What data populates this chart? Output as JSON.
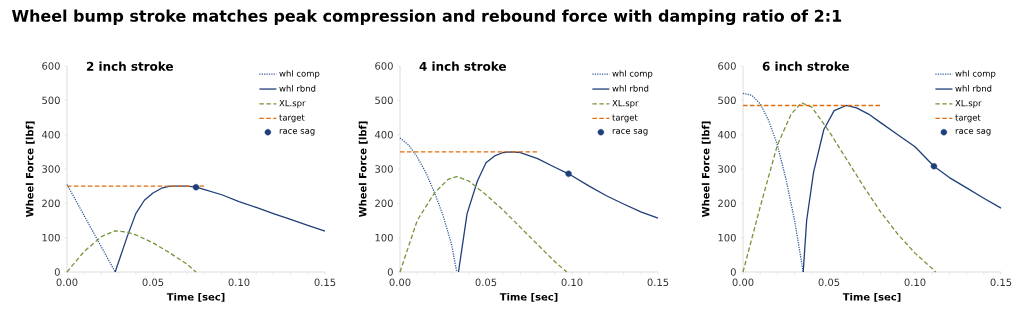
{
  "chart_data": [
    {
      "type": "line",
      "title": "Wheel bump stroke matches peak compression and rebound force with damping ratio of 2:1",
      "subtitle": "2 inch stroke",
      "xlabel": "Time [sec]",
      "ylabel": "Wheel Force [lbf]",
      "legend": "top right",
      "xlim": [
        0,
        0.15
      ],
      "ylim": [
        0,
        600
      ],
      "xticks": [
        {
          "value": 0,
          "label": "0.00"
        },
        {
          "value": 0.01,
          "label": null
        },
        {
          "value": 0.02,
          "label": null
        },
        {
          "value": 0.03,
          "label": null
        },
        {
          "value": 0.04,
          "label": null
        },
        {
          "value": 0.05,
          "label": "0.05"
        },
        {
          "value": 0.06,
          "label": null
        },
        {
          "value": 0.07,
          "label": null
        },
        {
          "value": 0.08,
          "label": null
        },
        {
          "value": 0.09,
          "label": null
        },
        {
          "value": 0.1,
          "label": "0.10"
        },
        {
          "value": 0.11,
          "label": null
        },
        {
          "value": 0.12,
          "label": null
        },
        {
          "value": 0.13,
          "label": null
        },
        {
          "value": 0.14,
          "label": null
        },
        {
          "value": 0.15,
          "label": "0.15"
        }
      ],
      "yticks": [
        0,
        100,
        200,
        300,
        400,
        500,
        600
      ],
      "series": [
        {
          "name": "whl comp",
          "color": "#2c5597",
          "line_style": "dotted",
          "x": [
            0,
            0.028
          ],
          "values": [
            255,
            0
          ]
        },
        {
          "name": "whl rbnd",
          "color": "#1f3f7a",
          "line_style": "solid",
          "x": [
            0.028,
            0.035,
            0.04,
            0.045,
            0.05,
            0.055,
            0.06,
            0.065,
            0.07,
            0.075,
            0.08,
            0.09,
            0.1,
            0.11,
            0.12,
            0.13,
            0.14,
            0.15
          ],
          "values": [
            0,
            103,
            170,
            209,
            230,
            244,
            250,
            250,
            250,
            247,
            240,
            225,
            205,
            188,
            170,
            153,
            136,
            119
          ]
        },
        {
          "name": "XL.spr",
          "color": "#77933c",
          "line_style": "dashed",
          "x": [
            0,
            0.01,
            0.02,
            0.028,
            0.035,
            0.04,
            0.05,
            0.06,
            0.07,
            0.075
          ],
          "values": [
            0,
            60,
            103,
            120,
            116,
            108,
            85,
            55,
            22,
            0
          ]
        },
        {
          "name": "target",
          "color": "#e46c0a",
          "line_style": "dashed",
          "x": [
            0,
            0.08
          ],
          "values": [
            250,
            250
          ]
        },
        {
          "name": "race sag",
          "color": "#1f3f7a",
          "type": "scatter",
          "marker": "circle",
          "x": [
            0.075
          ],
          "values": [
            247
          ]
        }
      ]
    },
    {
      "type": "line",
      "subtitle": "4 inch stroke",
      "xlabel": "Time [sec]",
      "ylabel": "Wheel Force [lbf]",
      "legend": "top right",
      "xlim": [
        0,
        0.15
      ],
      "ylim": [
        0,
        600
      ],
      "xticks": [
        {
          "value": 0,
          "label": "0.00"
        },
        {
          "value": 0.01,
          "label": null
        },
        {
          "value": 0.02,
          "label": null
        },
        {
          "value": 0.03,
          "label": null
        },
        {
          "value": 0.04,
          "label": null
        },
        {
          "value": 0.05,
          "label": "0.05"
        },
        {
          "value": 0.06,
          "label": null
        },
        {
          "value": 0.07,
          "label": null
        },
        {
          "value": 0.08,
          "label": null
        },
        {
          "value": 0.09,
          "label": null
        },
        {
          "value": 0.1,
          "label": "0.10"
        },
        {
          "value": 0.11,
          "label": null
        },
        {
          "value": 0.12,
          "label": null
        },
        {
          "value": 0.13,
          "label": null
        },
        {
          "value": 0.14,
          "label": null
        },
        {
          "value": 0.15,
          "label": "0.15"
        }
      ],
      "yticks": [
        0,
        100,
        200,
        300,
        400,
        500,
        600
      ],
      "series": [
        {
          "name": "whl comp",
          "color": "#2c5597",
          "line_style": "dotted",
          "x": [
            0,
            0.005,
            0.01,
            0.015,
            0.02,
            0.025,
            0.03,
            0.033
          ],
          "values": [
            390,
            370,
            335,
            290,
            232,
            165,
            80,
            0
          ]
        },
        {
          "name": "whl rbnd",
          "color": "#1f3f7a",
          "line_style": "solid",
          "x": [
            0.034,
            0.039,
            0.045,
            0.05,
            0.055,
            0.06,
            0.065,
            0.07,
            0.08,
            0.09,
            0.098,
            0.11,
            0.12,
            0.13,
            0.14,
            0.15
          ],
          "values": [
            0,
            170,
            265,
            318,
            338,
            348,
            350,
            348,
            330,
            305,
            286,
            250,
            222,
            198,
            175,
            157
          ]
        },
        {
          "name": "XL.spr",
          "color": "#77933c",
          "line_style": "dashed",
          "x": [
            0,
            0.01,
            0.02,
            0.028,
            0.033,
            0.04,
            0.05,
            0.06,
            0.07,
            0.08,
            0.09,
            0.097
          ],
          "values": [
            0,
            150,
            230,
            270,
            278,
            265,
            225,
            180,
            130,
            80,
            30,
            0
          ]
        },
        {
          "name": "target",
          "color": "#e46c0a",
          "line_style": "dashed",
          "x": [
            0,
            0.08
          ],
          "values": [
            350,
            350
          ]
        },
        {
          "name": "race sag",
          "color": "#1f3f7a",
          "type": "scatter",
          "marker": "circle",
          "x": [
            0.098
          ],
          "values": [
            286
          ]
        }
      ]
    },
    {
      "type": "line",
      "subtitle": "6 inch stroke",
      "xlabel": "Time [sec]",
      "ylabel": "Wheel Force [lbf]",
      "legend": "top right",
      "xlim": [
        0,
        0.15
      ],
      "ylim": [
        0,
        600
      ],
      "xticks": [
        {
          "value": 0,
          "label": "0.00"
        },
        {
          "value": 0.01,
          "label": null
        },
        {
          "value": 0.02,
          "label": null
        },
        {
          "value": 0.03,
          "label": null
        },
        {
          "value": 0.04,
          "label": null
        },
        {
          "value": 0.05,
          "label": "0.05"
        },
        {
          "value": 0.06,
          "label": null
        },
        {
          "value": 0.07,
          "label": null
        },
        {
          "value": 0.08,
          "label": null
        },
        {
          "value": 0.09,
          "label": null
        },
        {
          "value": 0.1,
          "label": "0.10"
        },
        {
          "value": 0.11,
          "label": null
        },
        {
          "value": 0.12,
          "label": null
        },
        {
          "value": 0.13,
          "label": null
        },
        {
          "value": 0.14,
          "label": null
        },
        {
          "value": 0.15,
          "label": "0.15"
        }
      ],
      "yticks": [
        0,
        100,
        200,
        300,
        400,
        500,
        600
      ],
      "series": [
        {
          "name": "whl comp",
          "color": "#2c5597",
          "line_style": "dotted",
          "x": [
            0,
            0.005,
            0.01,
            0.015,
            0.02,
            0.025,
            0.03,
            0.033,
            0.035
          ],
          "values": [
            520,
            515,
            490,
            440,
            370,
            270,
            150,
            60,
            0
          ]
        },
        {
          "name": "whl rbnd",
          "color": "#1f3f7a",
          "line_style": "solid",
          "x": [
            0.035,
            0.037,
            0.041,
            0.047,
            0.053,
            0.06,
            0.066,
            0.073,
            0.08,
            0.09,
            0.1,
            0.111,
            0.12,
            0.13,
            0.14,
            0.15
          ],
          "values": [
            0,
            150,
            290,
            415,
            470,
            485,
            478,
            460,
            435,
            400,
            365,
            308,
            275,
            245,
            215,
            186
          ]
        },
        {
          "name": "XL.spr",
          "color": "#77933c",
          "line_style": "dashed",
          "x": [
            0,
            0.01,
            0.02,
            0.028,
            0.034,
            0.04,
            0.05,
            0.06,
            0.07,
            0.08,
            0.09,
            0.1,
            0.11,
            0.112
          ],
          "values": [
            0,
            190,
            370,
            460,
            493,
            480,
            410,
            330,
            250,
            175,
            110,
            55,
            10,
            0
          ]
        },
        {
          "name": "target",
          "color": "#e46c0a",
          "line_style": "dashed",
          "x": [
            0,
            0.08
          ],
          "values": [
            485,
            485
          ]
        },
        {
          "name": "race sag",
          "color": "#1f3f7a",
          "type": "scatter",
          "marker": "circle",
          "x": [
            0.111
          ],
          "values": [
            308
          ]
        }
      ]
    }
  ]
}
